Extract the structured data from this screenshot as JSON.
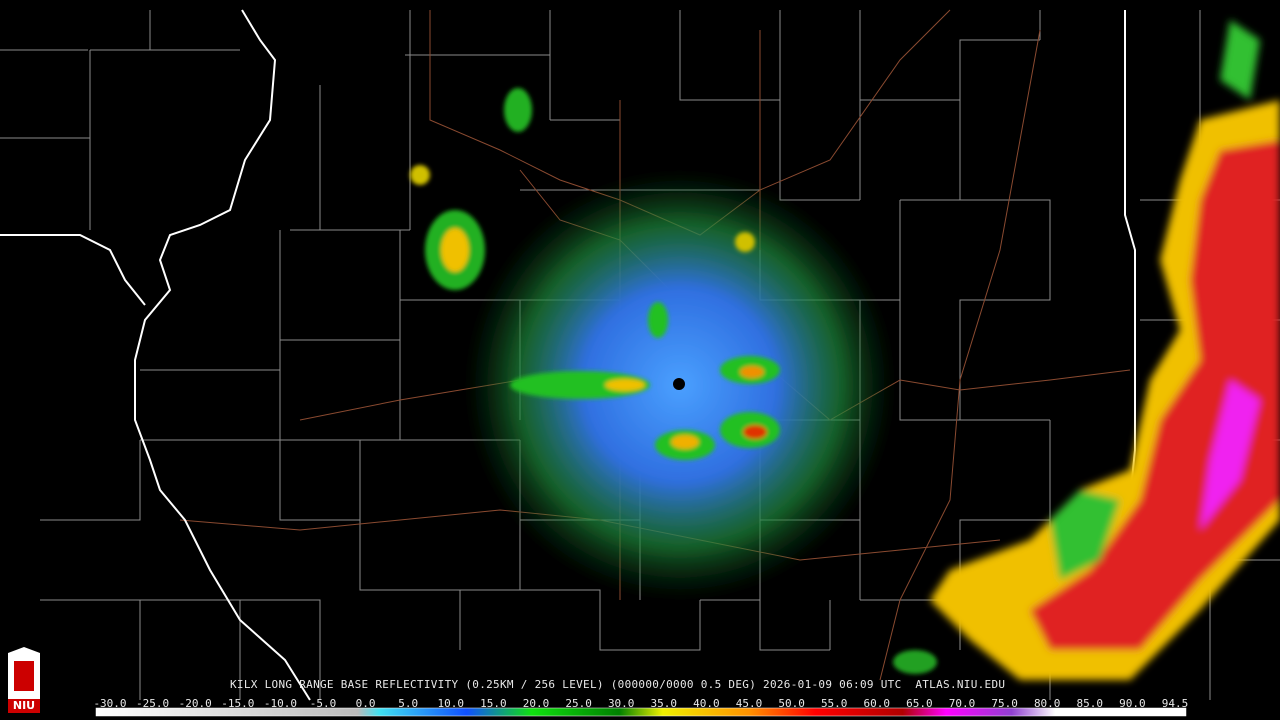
{
  "caption": "KILX LONG RANGE BASE REFLECTIVITY (0.25KM / 256 LEVEL) (000000/0000 0.5 DEG) 2026-01-09 06:09 UTC  ATLAS.NIU.EDU",
  "logo": "NIU",
  "scale": {
    "labels": [
      "-30.0",
      "-25.0",
      "-20.0",
      "-15.0",
      "-10.0",
      "-5.0",
      "0.0",
      "5.0",
      "10.0",
      "15.0",
      "20.0",
      "25.0",
      "30.0",
      "35.0",
      "40.0",
      "45.0",
      "50.0",
      "55.0",
      "60.0",
      "65.0",
      "70.0",
      "75.0",
      "80.0",
      "85.0",
      "90.0",
      "94.5"
    ]
  }
}
